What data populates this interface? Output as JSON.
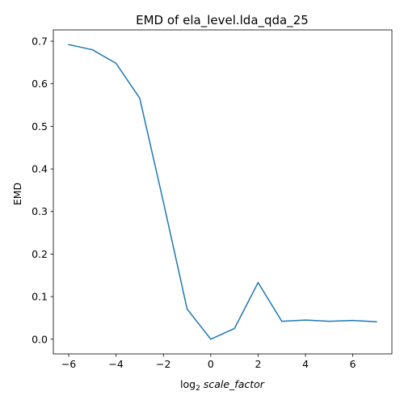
{
  "chart_data": {
    "type": "line",
    "title": "EMD of ela_level.lda_qda_25",
    "xlabel_prefix": "log",
    "xlabel_sub": "2",
    "xlabel_var": "scale_factor",
    "ylabel": "EMD",
    "xlim": [
      -6.65,
      7.65
    ],
    "ylim": [
      -0.0346,
      0.7266
    ],
    "xticks": [
      -6,
      -4,
      -2,
      0,
      2,
      4,
      6
    ],
    "xtick_labels": [
      "−6",
      "−4",
      "−2",
      "0",
      "2",
      "4",
      "6"
    ],
    "yticks": [
      0.0,
      0.1,
      0.2,
      0.3,
      0.4,
      0.5,
      0.6,
      0.7
    ],
    "ytick_labels": [
      "0.0",
      "0.1",
      "0.2",
      "0.3",
      "0.4",
      "0.5",
      "0.6",
      "0.7"
    ],
    "grid": false,
    "series": [
      {
        "name": "EMD",
        "color": "#1f77b4",
        "x": [
          -6,
          -5,
          -4,
          -3,
          -2,
          -1,
          0,
          1,
          2,
          3,
          4,
          5,
          6,
          7
        ],
        "values": [
          0.692,
          0.68,
          0.648,
          0.566,
          0.322,
          0.071,
          0.0,
          0.025,
          0.133,
          0.042,
          0.045,
          0.042,
          0.044,
          0.041
        ]
      }
    ]
  }
}
